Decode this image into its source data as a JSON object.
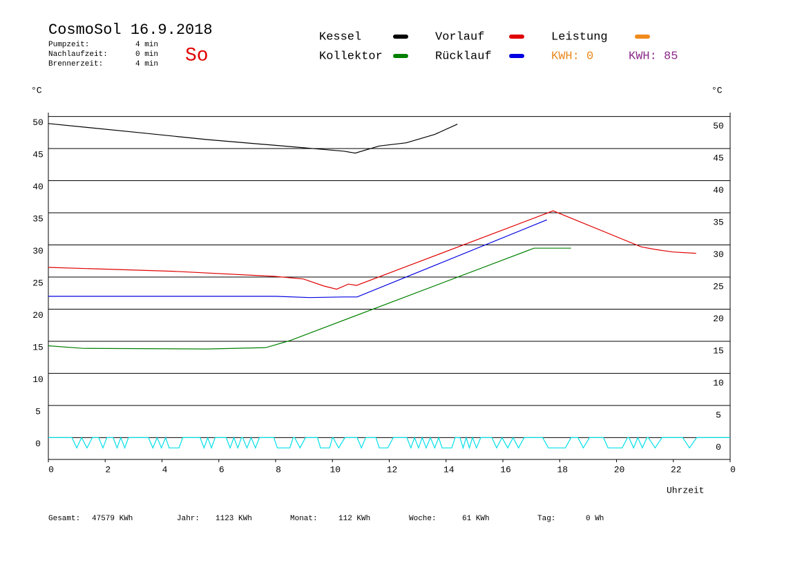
{
  "chart_data": {
    "type": "line",
    "title": "CosmoSol 16.9.2018",
    "day": "So",
    "info": [
      {
        "label": "Pumpzeit:",
        "value": "4 min"
      },
      {
        "label": "Nachlaufzeit:",
        "value": "0 min"
      },
      {
        "label": "Brennerzeit:",
        "value": "4 min"
      }
    ],
    "kwh_labels": [
      {
        "text": "KWH: 0",
        "color": "#e8891c"
      },
      {
        "text": "KWH: 85",
        "color": "#8a2a8a"
      }
    ],
    "y_label": "°C",
    "y2_label": "°C",
    "x_label": "Uhrzeit",
    "xlim": [
      0,
      24
    ],
    "xticks": [
      0,
      2,
      4,
      6,
      8,
      10,
      12,
      14,
      16,
      18,
      20,
      22,
      {
        "value": 24,
        "label": "0"
      }
    ],
    "ylim": [
      -3.4,
      50.6
    ],
    "yticks": [
      0,
      5,
      10,
      15,
      20,
      25,
      30,
      35,
      40,
      45,
      50
    ],
    "grid": true,
    "series": [
      {
        "name": "Kessel",
        "color": "#000000",
        "x": [
          0,
          3.16,
          5.58,
          8.0,
          10.4,
          10.8,
          11.65,
          12.6,
          13.6,
          14.4
        ],
        "values": [
          48.9,
          47.5,
          46.4,
          45.5,
          44.6,
          44.3,
          45.4,
          45.9,
          47.2,
          48.8
        ]
      },
      {
        "name": "Vorlauf",
        "color": "#e00000",
        "x": [
          0,
          4.37,
          8.0,
          8.98,
          9.7,
          10.15,
          10.56,
          10.85,
          17.77,
          20.87,
          21.36,
          21.97,
          22.8
        ],
        "values": [
          26.5,
          25.9,
          25.1,
          24.7,
          23.6,
          23.1,
          23.9,
          23.7,
          35.3,
          29.7,
          29.3,
          28.9,
          28.7
        ]
      },
      {
        "name": "Leistung",
        "color": "#f08a1c",
        "x": [],
        "values": []
      },
      {
        "name": "Kollektor",
        "color": "#008000",
        "x": [
          0,
          1.21,
          5.58,
          7.65,
          8.5,
          17.1,
          18.4
        ],
        "values": [
          14.3,
          13.9,
          13.8,
          14.0,
          15.1,
          29.5,
          29.5
        ]
      },
      {
        "name": "Rücklauf",
        "color": "#0000e0",
        "x": [
          0,
          8.0,
          9.2,
          10.4,
          10.87,
          17.55
        ],
        "values": [
          22.0,
          22.0,
          21.8,
          21.9,
          21.9,
          33.9
        ]
      },
      {
        "color": "#00e0e8",
        "x": [
          0,
          0.83,
          1.0,
          1.17,
          1.36,
          1.55,
          1.77,
          1.92,
          2.06,
          2.28,
          2.42,
          2.55,
          2.69,
          2.82,
          3.52,
          3.68,
          3.83,
          3.98,
          4.13,
          4.25,
          4.6,
          4.73,
          5.34,
          5.48,
          5.61,
          5.74,
          5.87,
          6.26,
          6.4,
          6.53,
          6.67,
          6.8,
          6.84,
          6.99,
          7.14,
          7.29,
          7.43,
          7.94,
          8.06,
          8.5,
          8.62,
          8.67,
          8.86,
          9.05,
          9.47,
          9.58,
          9.9,
          10.0,
          10.02,
          10.22,
          10.44,
          10.87,
          11.02,
          11.17,
          11.53,
          11.65,
          11.95,
          12.14,
          12.62,
          12.76,
          12.89,
          13.03,
          13.16,
          13.3,
          13.45,
          13.6,
          13.74,
          13.86,
          14.2,
          14.32,
          14.49,
          14.6,
          14.71,
          14.82,
          14.93,
          15.07,
          15.22,
          15.61,
          15.78,
          15.97,
          16.17,
          16.36,
          16.55,
          16.75,
          17.4,
          17.6,
          18.2,
          18.4,
          18.64,
          18.83,
          19.05,
          19.54,
          19.7,
          20.2,
          20.39,
          20.44,
          20.6,
          20.75,
          20.91,
          21.07,
          21.12,
          21.36,
          21.6,
          22.33,
          22.57,
          22.82,
          24
        ],
        "values": [
          0,
          0,
          -1.6,
          0,
          -1.6,
          0,
          0,
          -1.6,
          0,
          0,
          -1.6,
          0,
          -1.6,
          0,
          0,
          -1.6,
          0,
          -1.6,
          0,
          -1.6,
          -1.6,
          0,
          0,
          -1.6,
          0,
          -1.6,
          0,
          0,
          -1.6,
          0,
          -1.6,
          0,
          0,
          -1.6,
          0,
          -1.6,
          0,
          0,
          -1.6,
          -1.6,
          0,
          0,
          -1.6,
          0,
          0,
          -1.6,
          -1.6,
          0,
          0,
          -1.6,
          0,
          0,
          -1.6,
          0,
          0,
          -1.6,
          -1.6,
          0,
          0,
          -1.6,
          0,
          -1.6,
          0,
          -1.6,
          0,
          -1.6,
          0,
          -1.6,
          -1.6,
          0,
          0,
          -1.6,
          0,
          -1.6,
          0,
          -1.6,
          0,
          0,
          -1.6,
          0,
          -1.6,
          0,
          -1.6,
          0,
          0,
          -1.6,
          -1.6,
          0,
          0,
          -1.6,
          0,
          0,
          -1.6,
          -1.6,
          0,
          0,
          -1.6,
          0,
          -1.6,
          0,
          0,
          -1.6,
          0,
          0,
          -1.6,
          0,
          0
        ]
      }
    ],
    "totals": [
      {
        "label": "Gesamt:",
        "value": "47579 KWh"
      },
      {
        "label": "Jahr:",
        "value": "1123 KWh"
      },
      {
        "label": "Monat:",
        "value": "112 KWh"
      },
      {
        "label": "Woche:",
        "value": "61 KWh"
      },
      {
        "label": "Tag:",
        "value": "0 Wh"
      }
    ]
  }
}
